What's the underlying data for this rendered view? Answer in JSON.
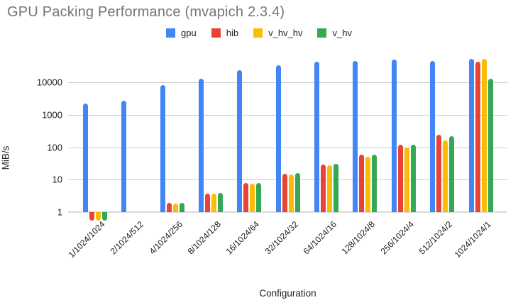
{
  "header": {
    "title": "GPU Packing Performance (mvapich 2.3.4)"
  },
  "chart_data": {
    "type": "bar",
    "title": "GPU Packing Performance (mvapich 2.3.4)",
    "xlabel": "Configuration",
    "ylabel": "MiB/s",
    "y_scale": "log",
    "grid": true,
    "legend_position": "top",
    "baseline": 1,
    "y_ticks": [
      1,
      10,
      100,
      1000,
      10000
    ],
    "ylim": [
      0.45,
      62000
    ],
    "categories": [
      "1/1024/1024",
      "2/1024/512",
      "4/1024/256",
      "8/1024/128",
      "16/1024/64",
      "32/1024/32",
      "64/1024/16",
      "128/1024/8",
      "256/1024/4",
      "512/1024/2",
      "1024/1024/1"
    ],
    "series": [
      {
        "name": "gpu",
        "color": "#4285F4",
        "values": [
          2200,
          2700,
          8200,
          12900,
          23600,
          34000,
          42600,
          45400,
          49400,
          45400,
          52000
        ]
      },
      {
        "name": "hib",
        "color": "#EA4335",
        "values": [
          0.55,
          null,
          1.9,
          3.8,
          7.7,
          15.5,
          29,
          58,
          118,
          240,
          42600
        ]
      },
      {
        "name": "v_hv_hv",
        "color": "#FBBC04",
        "values": [
          0.55,
          null,
          1.8,
          3.7,
          7.4,
          14.5,
          28,
          52,
          100,
          165,
          53000
        ]
      },
      {
        "name": "v_hv",
        "color": "#34A853",
        "values": [
          0.55,
          null,
          1.9,
          3.9,
          7.8,
          16,
          31,
          60,
          120,
          220,
          12900
        ]
      }
    ]
  }
}
